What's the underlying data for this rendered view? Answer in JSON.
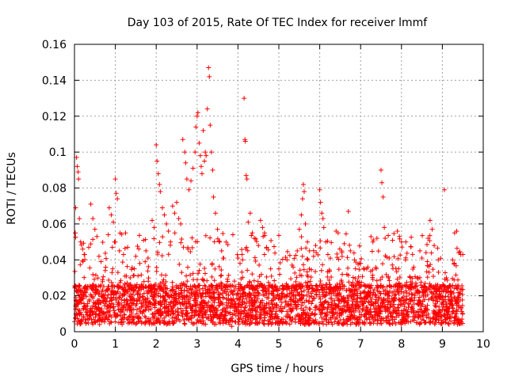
{
  "chart_data": {
    "type": "scatter",
    "title": "Day 103 of 2015, Rate Of TEC Index for receiver lmmf",
    "xlabel": "GPS time / hours",
    "ylabel": "ROTI / TECUs",
    "xlim": [
      0,
      10
    ],
    "ylim": [
      0,
      0.16
    ],
    "xticks": [
      0,
      1,
      2,
      3,
      4,
      5,
      6,
      7,
      8,
      9,
      10
    ],
    "yticks": [
      0,
      0.02,
      0.04,
      0.06,
      0.08,
      0.1,
      0.12,
      0.14,
      0.16
    ],
    "ytick_labels": [
      "0",
      "0.02",
      "0.04",
      "0.06",
      "0.08",
      "0.1",
      "0.12",
      "0.14",
      "0.16"
    ],
    "grid": true,
    "marker": "+",
    "color": "#ff0000",
    "data_x_range_hours": [
      0,
      9.5
    ],
    "series": [
      {
        "name": "ROTI",
        "points": [
          [
            0.05,
            0.097
          ],
          [
            0.07,
            0.092
          ],
          [
            0.09,
            0.089
          ],
          [
            0.1,
            0.085
          ],
          [
            0.03,
            0.069
          ],
          [
            0.12,
            0.063
          ],
          [
            0.02,
            0.055
          ],
          [
            0.15,
            0.05
          ],
          [
            0.2,
            0.046
          ],
          [
            0.25,
            0.043
          ],
          [
            0.4,
            0.071
          ],
          [
            0.45,
            0.063
          ],
          [
            0.5,
            0.057
          ],
          [
            0.55,
            0.053
          ],
          [
            0.35,
            0.047
          ],
          [
            0.6,
            0.042
          ],
          [
            0.65,
            0.039
          ],
          [
            0.85,
            0.069
          ],
          [
            0.9,
            0.065
          ],
          [
            0.95,
            0.061
          ],
          [
            1.0,
            0.085
          ],
          [
            1.02,
            0.077
          ],
          [
            1.05,
            0.074
          ],
          [
            0.98,
            0.05
          ],
          [
            1.1,
            0.045
          ],
          [
            1.2,
            0.043
          ],
          [
            1.25,
            0.055
          ],
          [
            1.3,
            0.047
          ],
          [
            1.5,
            0.042
          ],
          [
            1.6,
            0.038
          ],
          [
            1.75,
            0.045
          ],
          [
            1.8,
            0.041
          ],
          [
            1.9,
            0.062
          ],
          [
            1.95,
            0.058
          ],
          [
            2.0,
            0.104
          ],
          [
            2.02,
            0.095
          ],
          [
            2.05,
            0.088
          ],
          [
            2.08,
            0.082
          ],
          [
            2.1,
            0.078
          ],
          [
            2.15,
            0.069
          ],
          [
            2.2,
            0.065
          ],
          [
            2.25,
            0.06
          ],
          [
            2.3,
            0.056
          ],
          [
            2.35,
            0.05
          ],
          [
            2.4,
            0.07
          ],
          [
            2.45,
            0.066
          ],
          [
            2.5,
            0.072
          ],
          [
            2.55,
            0.063
          ],
          [
            2.6,
            0.06
          ],
          [
            2.65,
            0.107
          ],
          [
            2.7,
            0.1
          ],
          [
            2.72,
            0.094
          ],
          [
            2.75,
            0.085
          ],
          [
            2.8,
            0.079
          ],
          [
            2.85,
            0.084
          ],
          [
            2.9,
            0.091
          ],
          [
            2.95,
            0.1
          ],
          [
            2.97,
            0.114
          ],
          [
            3.0,
            0.12
          ],
          [
            3.02,
            0.122
          ],
          [
            3.05,
            0.105
          ],
          [
            3.08,
            0.098
          ],
          [
            3.1,
            0.092
          ],
          [
            3.12,
            0.088
          ],
          [
            3.15,
            0.112
          ],
          [
            3.18,
            0.095
          ],
          [
            3.2,
            0.1
          ],
          [
            3.22,
            0.098
          ],
          [
            3.25,
            0.124
          ],
          [
            3.28,
            0.147
          ],
          [
            3.3,
            0.142
          ],
          [
            3.32,
            0.115
          ],
          [
            3.35,
            0.1
          ],
          [
            3.38,
            0.09
          ],
          [
            3.4,
            0.075
          ],
          [
            3.45,
            0.066
          ],
          [
            3.5,
            0.057
          ],
          [
            3.55,
            0.05
          ],
          [
            3.6,
            0.045
          ],
          [
            3.65,
            0.041
          ],
          [
            3.75,
            0.028
          ],
          [
            3.8,
            0.004
          ],
          [
            3.85,
            0.003
          ],
          [
            3.9,
            0.025
          ],
          [
            4.0,
            0.041
          ],
          [
            4.05,
            0.038
          ],
          [
            4.1,
            0.043
          ],
          [
            4.15,
            0.13
          ],
          [
            4.17,
            0.107
          ],
          [
            4.18,
            0.106
          ],
          [
            4.2,
            0.087
          ],
          [
            4.22,
            0.085
          ],
          [
            4.25,
            0.061
          ],
          [
            4.3,
            0.066
          ],
          [
            4.35,
            0.055
          ],
          [
            4.4,
            0.052
          ],
          [
            4.5,
            0.048
          ],
          [
            4.55,
            0.062
          ],
          [
            4.6,
            0.058
          ],
          [
            4.65,
            0.055
          ],
          [
            4.7,
            0.047
          ],
          [
            4.8,
            0.035
          ],
          [
            5.0,
            0.035
          ],
          [
            5.2,
            0.04
          ],
          [
            5.35,
            0.036
          ],
          [
            5.45,
            0.045
          ],
          [
            5.5,
            0.057
          ],
          [
            5.55,
            0.065
          ],
          [
            5.58,
            0.074
          ],
          [
            5.6,
            0.082
          ],
          [
            5.62,
            0.078
          ],
          [
            5.65,
            0.06
          ],
          [
            5.7,
            0.05
          ],
          [
            5.75,
            0.045
          ],
          [
            5.85,
            0.042
          ],
          [
            5.9,
            0.048
          ],
          [
            6.0,
            0.079
          ],
          [
            6.02,
            0.072
          ],
          [
            6.05,
            0.066
          ],
          [
            6.08,
            0.063
          ],
          [
            6.1,
            0.058
          ],
          [
            6.15,
            0.05
          ],
          [
            6.2,
            0.043
          ],
          [
            6.4,
            0.056
          ],
          [
            6.45,
            0.055
          ],
          [
            6.6,
            0.049
          ],
          [
            6.7,
            0.067
          ],
          [
            6.75,
            0.045
          ],
          [
            6.85,
            0.04
          ],
          [
            7.0,
            0.038
          ],
          [
            7.15,
            0.035
          ],
          [
            7.3,
            0.05
          ],
          [
            7.4,
            0.052
          ],
          [
            7.5,
            0.09
          ],
          [
            7.52,
            0.083
          ],
          [
            7.55,
            0.075
          ],
          [
            7.58,
            0.058
          ],
          [
            7.6,
            0.052
          ],
          [
            7.7,
            0.041
          ],
          [
            7.9,
            0.056
          ],
          [
            7.95,
            0.053
          ],
          [
            8.0,
            0.05
          ],
          [
            8.1,
            0.04
          ],
          [
            8.3,
            0.036
          ],
          [
            8.45,
            0.045
          ],
          [
            8.5,
            0.041
          ],
          [
            8.6,
            0.044
          ],
          [
            8.65,
            0.052
          ],
          [
            8.7,
            0.062
          ],
          [
            8.75,
            0.057
          ],
          [
            8.8,
            0.048
          ],
          [
            8.9,
            0.04
          ],
          [
            9.05,
            0.079
          ],
          [
            9.1,
            0.03
          ],
          [
            9.25,
            0.04
          ],
          [
            9.3,
            0.055
          ],
          [
            9.35,
            0.056
          ],
          [
            9.4,
            0.044
          ],
          [
            9.45,
            0.043
          ],
          [
            9.5,
            0.043
          ]
        ]
      }
    ]
  }
}
